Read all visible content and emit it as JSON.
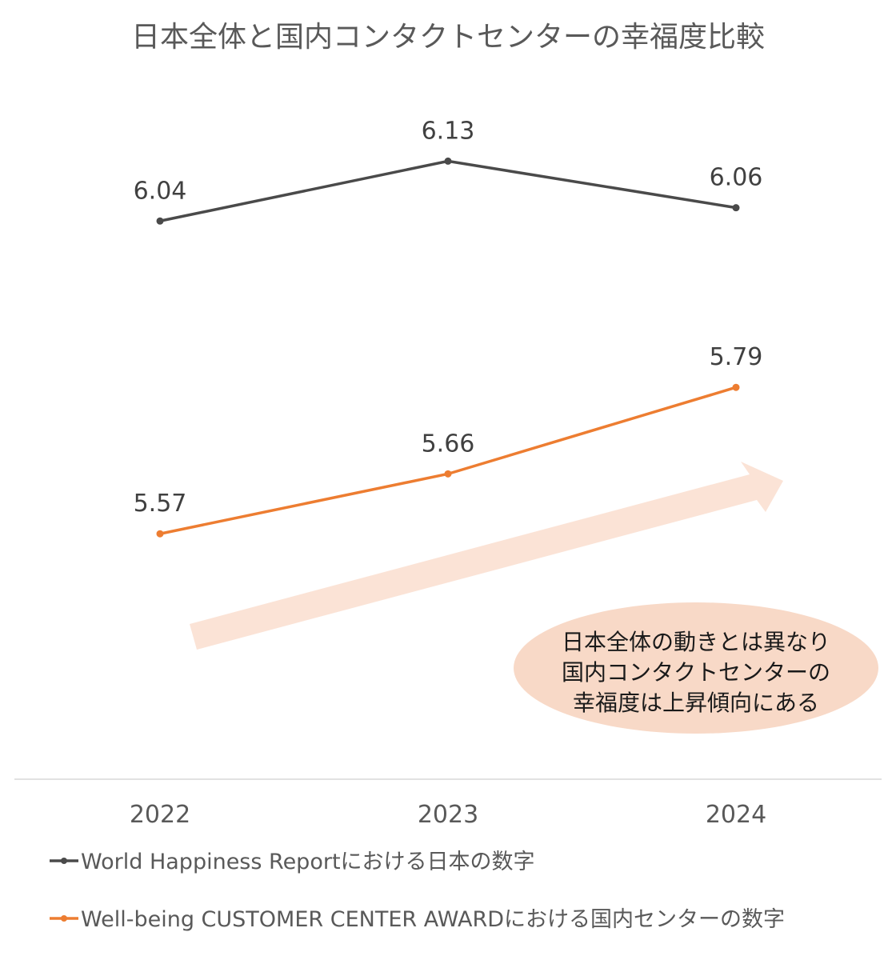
{
  "chart_data": {
    "type": "line",
    "title": "日本全体と国内コンタクトセンターの幸福度比較",
    "categories": [
      "2022",
      "2023",
      "2024"
    ],
    "series": [
      {
        "name": "World Happiness Reportにおける日本の数字",
        "values": [
          6.04,
          6.13,
          6.06
        ],
        "labels": [
          "6.04",
          "6.13",
          "6.06"
        ],
        "color": "#4a4a4a"
      },
      {
        "name": "Well-being CUSTOMER CENTER AWARDにおける国内センターの数字",
        "values": [
          5.57,
          5.66,
          5.79
        ],
        "labels": [
          "5.57",
          "5.66",
          "5.79"
        ],
        "color": "#ed7d31"
      }
    ],
    "ylim": [
      5.2,
      6.3
    ],
    "grid": false,
    "legend": "bottom-left",
    "annotation": {
      "lines": [
        "日本全体の動きとは異なり",
        "国内コンタクトセンターの",
        "幸福度は上昇傾向にある"
      ],
      "arrow_color": "#fbe3d6",
      "bubble_color": "#f8d9c7"
    }
  }
}
